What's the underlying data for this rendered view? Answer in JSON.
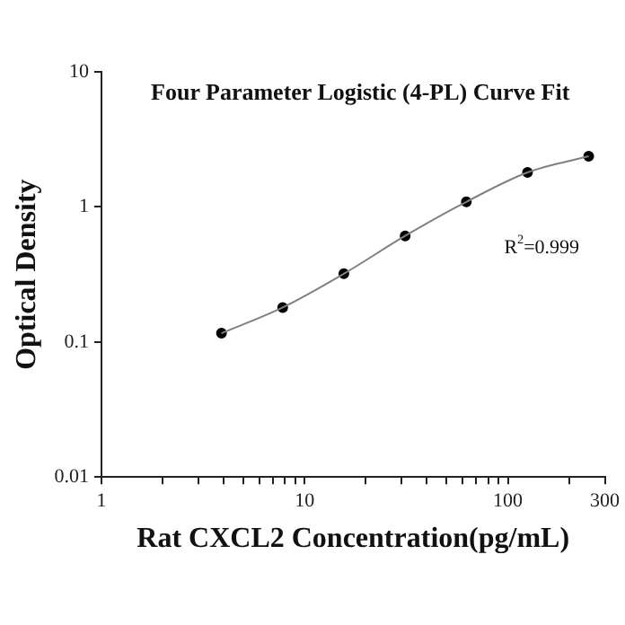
{
  "chart_data": {
    "type": "scatter",
    "title": "Four Parameter Logistic (4-PL) Curve Fit",
    "xlabel": "Rat CXCL2 Concentration(pg/mL)",
    "ylabel": "Optical Density",
    "annotations": [
      "R$^{2}$=0.999"
    ],
    "series": [
      {
        "type": "line",
        "color": "#808080",
        "marker": "none",
        "x": [
          3.9,
          7.8,
          15.6,
          31.25,
          62.5,
          125,
          250
        ],
        "values": [
          0.116,
          0.18,
          0.32,
          0.61,
          1.09,
          1.8,
          2.37
        ]
      },
      {
        "type": "scatter",
        "color": "#000000",
        "marker": "circle",
        "x": [
          3.9,
          7.8,
          15.6,
          31.25,
          62.5,
          125,
          250
        ],
        "values": [
          0.116,
          0.18,
          0.32,
          0.61,
          1.09,
          1.8,
          2.37
        ]
      }
    ],
    "log": "xy",
    "grid": false,
    "legend": false,
    "xlim": [
      1,
      300
    ],
    "ylim": [
      0.01,
      10
    ],
    "xticks": [
      1,
      {
        "value": 2,
        "label": null
      },
      {
        "value": 3,
        "label": null
      },
      {
        "value": 4,
        "label": null
      },
      {
        "value": 5,
        "label": null
      },
      {
        "value": 6,
        "label": null
      },
      {
        "value": 7,
        "label": null
      },
      {
        "value": 8,
        "label": null
      },
      {
        "value": 9,
        "label": null
      },
      10,
      {
        "value": 20,
        "label": null
      },
      {
        "value": 30,
        "label": null
      },
      {
        "value": 40,
        "label": null
      },
      {
        "value": 50,
        "label": null
      },
      {
        "value": 60,
        "label": null
      },
      {
        "value": 70,
        "label": null
      },
      {
        "value": 80,
        "label": null
      },
      {
        "value": 90,
        "label": null
      },
      100,
      {
        "value": 200,
        "label": null
      },
      300
    ],
    "yticks": [
      0.01,
      0.1,
      1,
      10
    ]
  }
}
